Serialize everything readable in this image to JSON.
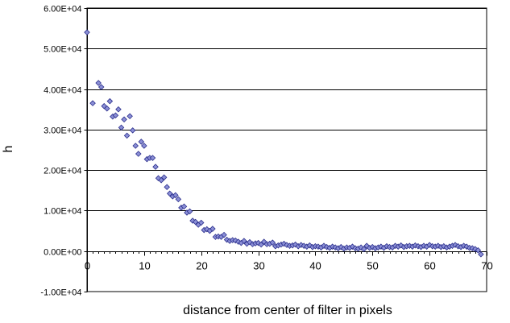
{
  "chart_data": {
    "type": "scatter",
    "title": "",
    "xlabel": "distance from center of filter in pixels",
    "ylabel": "h",
    "xlim": [
      0,
      70
    ],
    "ylim": [
      -10000,
      60000
    ],
    "x_ticks": [
      0,
      10,
      20,
      30,
      40,
      50,
      60,
      70
    ],
    "x_tick_labels": [
      "0",
      "10",
      "20",
      "30",
      "40",
      "50",
      "60",
      "70"
    ],
    "y_ticks": [
      -10000,
      0,
      10000,
      20000,
      30000,
      40000,
      50000,
      60000
    ],
    "y_tick_labels": [
      "-1.00E+04",
      "0.00E+00",
      "1.00E+04",
      "2.00E+04",
      "3.00E+04",
      "4.00E+04",
      "5.00E+04",
      "6.00E+04"
    ],
    "grid": "horizontal",
    "legend": "none",
    "marker": "diamond",
    "colors": {
      "marker_fill": "#8b8fd6",
      "marker_stroke": "#2b2f8c",
      "grid": "#000000",
      "axis": "#000000"
    },
    "series": [
      {
        "points": [
          [
            0,
            54000
          ],
          [
            1,
            36500
          ],
          [
            2,
            41500
          ],
          [
            2.5,
            40500
          ],
          [
            3,
            35800
          ],
          [
            3.5,
            35200
          ],
          [
            4,
            37000
          ],
          [
            4.5,
            33200
          ],
          [
            5,
            33500
          ],
          [
            5.5,
            35000
          ],
          [
            6,
            30500
          ],
          [
            6.5,
            32500
          ],
          [
            7,
            28500
          ],
          [
            7.5,
            33300
          ],
          [
            8,
            29800
          ],
          [
            8.5,
            26000
          ],
          [
            9,
            24000
          ],
          [
            9.5,
            27000
          ],
          [
            10,
            26000
          ],
          [
            10.5,
            22700
          ],
          [
            11,
            23000
          ],
          [
            11.5,
            23000
          ],
          [
            12,
            20800
          ],
          [
            12.5,
            18000
          ],
          [
            13,
            17500
          ],
          [
            13.5,
            18200
          ],
          [
            14,
            15800
          ],
          [
            14.5,
            14200
          ],
          [
            15,
            13500
          ],
          [
            15.5,
            13800
          ],
          [
            16,
            12800
          ],
          [
            16.5,
            10700
          ],
          [
            17,
            11000
          ],
          [
            17.5,
            9500
          ],
          [
            18,
            9800
          ],
          [
            18.5,
            7500
          ],
          [
            19,
            7200
          ],
          [
            19.5,
            6500
          ],
          [
            20,
            7000
          ],
          [
            20.5,
            5200
          ],
          [
            21,
            5400
          ],
          [
            21.5,
            5000
          ],
          [
            22,
            5500
          ],
          [
            22.5,
            3500
          ],
          [
            23,
            3600
          ],
          [
            23.5,
            3500
          ],
          [
            24,
            4000
          ],
          [
            24.5,
            2800
          ],
          [
            25,
            2500
          ],
          [
            25.5,
            2700
          ],
          [
            26,
            2600
          ],
          [
            26.5,
            2300
          ],
          [
            27,
            2000
          ],
          [
            27.5,
            2500
          ],
          [
            28,
            1800
          ],
          [
            28.5,
            2200
          ],
          [
            29,
            1700
          ],
          [
            29.5,
            1900
          ],
          [
            30,
            2000
          ],
          [
            30.5,
            1600
          ],
          [
            31,
            2300
          ],
          [
            31.5,
            1700
          ],
          [
            32,
            1800
          ],
          [
            32.5,
            2100
          ],
          [
            33,
            1200
          ],
          [
            33.5,
            1400
          ],
          [
            34,
            1600
          ],
          [
            34.5,
            1800
          ],
          [
            35,
            1500
          ],
          [
            35.5,
            1300
          ],
          [
            36,
            1400
          ],
          [
            36.5,
            1600
          ],
          [
            37,
            1200
          ],
          [
            37.5,
            1500
          ],
          [
            38,
            1300
          ],
          [
            38.5,
            1100
          ],
          [
            39,
            1400
          ],
          [
            39.5,
            1000
          ],
          [
            40,
            1200
          ],
          [
            40.5,
            1100
          ],
          [
            41,
            900
          ],
          [
            41.5,
            1300
          ],
          [
            42,
            1000
          ],
          [
            42.5,
            800
          ],
          [
            43,
            1100
          ],
          [
            43.5,
            900
          ],
          [
            44,
            700
          ],
          [
            44.5,
            1000
          ],
          [
            45,
            600
          ],
          [
            45.5,
            900
          ],
          [
            46,
            800
          ],
          [
            46.5,
            1100
          ],
          [
            47,
            700
          ],
          [
            47.5,
            600
          ],
          [
            48,
            900
          ],
          [
            48.5,
            500
          ],
          [
            49,
            1300
          ],
          [
            49.5,
            800
          ],
          [
            50,
            1000
          ],
          [
            50.5,
            700
          ],
          [
            51,
            900
          ],
          [
            51.5,
            1100
          ],
          [
            52,
            800
          ],
          [
            52.5,
            1200
          ],
          [
            53,
            1000
          ],
          [
            53.5,
            900
          ],
          [
            54,
            1300
          ],
          [
            54.5,
            1100
          ],
          [
            55,
            1400
          ],
          [
            55.5,
            1000
          ],
          [
            56,
            1200
          ],
          [
            56.5,
            1300
          ],
          [
            57,
            1100
          ],
          [
            57.5,
            1400
          ],
          [
            58,
            1200
          ],
          [
            58.5,
            1000
          ],
          [
            59,
            1300
          ],
          [
            59.5,
            1100
          ],
          [
            60,
            1500
          ],
          [
            60.5,
            1200
          ],
          [
            61,
            1100
          ],
          [
            61.5,
            1300
          ],
          [
            62,
            1000
          ],
          [
            62.5,
            1200
          ],
          [
            63,
            900
          ],
          [
            63.5,
            1100
          ],
          [
            64,
            1300
          ],
          [
            64.5,
            1500
          ],
          [
            65,
            1200
          ],
          [
            65.5,
            1000
          ],
          [
            66,
            1300
          ],
          [
            66.5,
            1100
          ],
          [
            67,
            800
          ],
          [
            67.5,
            700
          ],
          [
            68,
            500
          ],
          [
            68.5,
            200
          ],
          [
            69,
            -800
          ]
        ]
      }
    ]
  }
}
